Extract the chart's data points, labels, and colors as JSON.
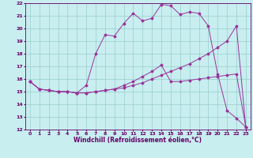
{
  "xlabel": "Windchill (Refroidissement éolien,°C)",
  "xlim": [
    -0.5,
    23.5
  ],
  "ylim": [
    12,
    22
  ],
  "yticks": [
    12,
    13,
    14,
    15,
    16,
    17,
    18,
    19,
    20,
    21,
    22
  ],
  "xticks": [
    0,
    1,
    2,
    3,
    4,
    5,
    6,
    7,
    8,
    9,
    10,
    11,
    12,
    13,
    14,
    15,
    16,
    17,
    18,
    19,
    20,
    21,
    22,
    23
  ],
  "bg_color": "#c8eef0",
  "grid_color": "#99cccc",
  "line_color": "#993399",
  "line1_x": [
    0,
    1,
    2,
    3,
    4,
    5,
    6,
    7,
    8,
    9,
    10,
    11,
    12,
    13,
    14,
    15,
    16,
    17,
    18,
    19,
    20,
    21,
    22,
    23
  ],
  "line1_y": [
    15.8,
    15.2,
    15.1,
    15.0,
    15.0,
    14.9,
    14.9,
    15.0,
    15.1,
    15.2,
    15.3,
    15.5,
    15.7,
    16.0,
    16.3,
    16.6,
    16.9,
    17.2,
    17.6,
    18.0,
    18.5,
    19.0,
    20.2,
    12.2
  ],
  "line2_x": [
    0,
    1,
    2,
    3,
    4,
    5,
    6,
    7,
    8,
    9,
    10,
    11,
    12,
    13,
    14,
    15,
    16,
    17,
    18,
    19,
    20,
    21,
    22,
    23
  ],
  "line2_y": [
    15.8,
    15.2,
    15.1,
    15.0,
    15.0,
    14.9,
    15.5,
    18.0,
    19.5,
    19.4,
    20.4,
    21.2,
    20.6,
    20.8,
    21.9,
    21.8,
    21.1,
    21.3,
    21.2,
    20.2,
    16.4,
    13.5,
    12.9,
    12.2
  ],
  "line3_x": [
    0,
    1,
    2,
    3,
    4,
    5,
    6,
    7,
    8,
    9,
    10,
    11,
    12,
    13,
    14,
    15,
    16,
    17,
    18,
    19,
    20,
    21,
    22,
    23
  ],
  "line3_y": [
    15.8,
    15.2,
    15.1,
    15.0,
    15.0,
    14.9,
    14.9,
    15.0,
    15.1,
    15.2,
    15.5,
    15.8,
    16.2,
    16.6,
    17.1,
    15.8,
    15.8,
    15.9,
    16.0,
    16.1,
    16.2,
    16.3,
    16.4,
    12.2
  ],
  "tick_color": "#660066",
  "label_fontsize": 5.5,
  "tick_fontsize": 4.5
}
